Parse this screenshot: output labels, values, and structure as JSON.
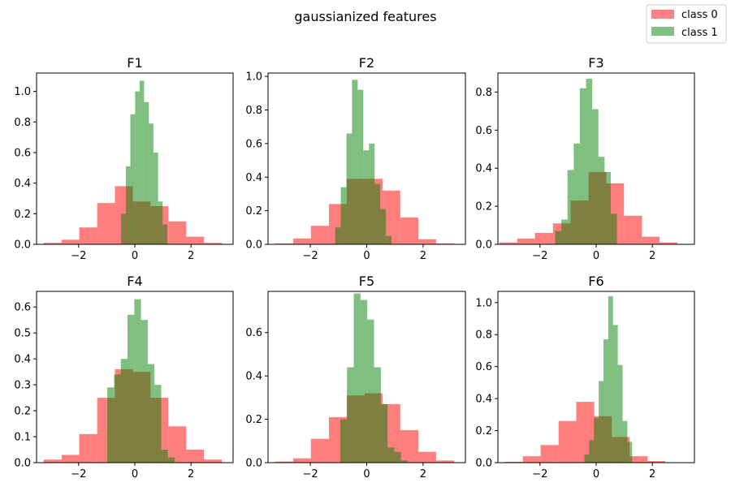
{
  "figure": {
    "suptitle": "gaussianized features"
  },
  "legend": {
    "placement": "upper-right",
    "items": [
      {
        "label": "class 0",
        "color": "#ff8080"
      },
      {
        "label": "class 1",
        "color": "#80c080"
      }
    ]
  },
  "colors": {
    "class0": "#ff0000",
    "class1": "#008000",
    "alpha": 0.5
  },
  "chart_data": [
    {
      "type": "histogram",
      "title": "F1",
      "xlim": [
        -3.5,
        3.5
      ],
      "ylim": [
        0,
        1.12
      ],
      "xticks": [
        -2,
        0,
        2
      ],
      "yticks": [
        0.0,
        0.2,
        0.4,
        0.6,
        0.8,
        1.0
      ],
      "xtick_labels": [
        "−2",
        "0",
        "2"
      ],
      "ytick_labels": [
        "0.0",
        "0.2",
        "0.4",
        "0.6",
        "0.8",
        "1.0"
      ],
      "series": [
        {
          "name": "class 0",
          "bins": [
            -3.25,
            -2.61,
            -1.98,
            -1.34,
            -0.71,
            -0.07,
            0.56,
            1.19,
            1.83,
            2.46,
            3.1
          ],
          "values": [
            0.01,
            0.03,
            0.11,
            0.27,
            0.38,
            0.28,
            0.25,
            0.15,
            0.05,
            0.01
          ]
        },
        {
          "name": "class 1",
          "bins": [
            -0.49,
            -0.32,
            -0.16,
            0.01,
            0.17,
            0.33,
            0.5,
            0.66,
            0.83,
            0.99,
            1.16
          ],
          "values": [
            0.2,
            0.51,
            0.85,
            1.0,
            1.07,
            0.93,
            0.79,
            0.6,
            0.28,
            0.13
          ]
        }
      ]
    },
    {
      "type": "histogram",
      "title": "F2",
      "xlim": [
        -3.5,
        3.5
      ],
      "ylim": [
        0,
        1.02
      ],
      "xticks": [
        -2,
        0,
        2
      ],
      "yticks": [
        0.0,
        0.2,
        0.4,
        0.6,
        0.8,
        1.0
      ],
      "xtick_labels": [
        "−2",
        "0",
        "2"
      ],
      "ytick_labels": [
        "0.0",
        "0.2",
        "0.4",
        "0.6",
        "0.8",
        "1.0"
      ],
      "series": [
        {
          "name": "class 0",
          "bins": [
            -3.25,
            -2.61,
            -1.98,
            -1.34,
            -0.71,
            -0.07,
            0.56,
            1.19,
            1.83,
            2.46,
            3.1
          ],
          "values": [
            0.005,
            0.035,
            0.11,
            0.24,
            0.39,
            0.39,
            0.32,
            0.16,
            0.03,
            0.005
          ]
        },
        {
          "name": "class 1",
          "bins": [
            -1.12,
            -0.92,
            -0.72,
            -0.52,
            -0.32,
            -0.12,
            0.08,
            0.28,
            0.48,
            0.68,
            0.88
          ],
          "values": [
            0.1,
            0.34,
            0.66,
            0.98,
            0.92,
            0.56,
            0.6,
            0.36,
            0.21,
            0.05
          ]
        }
      ]
    },
    {
      "type": "histogram",
      "title": "F3",
      "xlim": [
        -3.5,
        3.5
      ],
      "ylim": [
        0,
        0.9
      ],
      "xticks": [
        -2,
        0,
        2
      ],
      "yticks": [
        0.0,
        0.2,
        0.4,
        0.6,
        0.8
      ],
      "xtick_labels": [
        "−2",
        "0",
        "2"
      ],
      "ytick_labels": [
        "0.0",
        "0.2",
        "0.4",
        "0.6",
        "0.8"
      ],
      "series": [
        {
          "name": "class 0",
          "bins": [
            -3.45,
            -2.81,
            -2.18,
            -1.54,
            -0.91,
            -0.27,
            0.36,
            0.99,
            1.63,
            2.26,
            2.9
          ],
          "values": [
            0.01,
            0.03,
            0.06,
            0.11,
            0.23,
            0.38,
            0.32,
            0.15,
            0.04,
            0.01
          ]
        },
        {
          "name": "class 1",
          "bins": [
            -1.46,
            -1.24,
            -1.02,
            -0.8,
            -0.58,
            -0.36,
            -0.14,
            0.08,
            0.3,
            0.52,
            0.74
          ],
          "values": [
            0.07,
            0.13,
            0.39,
            0.53,
            0.82,
            0.87,
            0.71,
            0.46,
            0.38,
            0.16
          ]
        }
      ]
    },
    {
      "type": "histogram",
      "title": "F4",
      "xlim": [
        -3.5,
        3.5
      ],
      "ylim": [
        0,
        0.66
      ],
      "xticks": [
        -2,
        0,
        2
      ],
      "yticks": [
        0.0,
        0.1,
        0.2,
        0.3,
        0.4,
        0.5,
        0.6
      ],
      "xtick_labels": [
        "−2",
        "0",
        "2"
      ],
      "ytick_labels": [
        "0.0",
        "0.1",
        "0.2",
        "0.3",
        "0.4",
        "0.5",
        "0.6"
      ],
      "series": [
        {
          "name": "class 0",
          "bins": [
            -3.25,
            -2.61,
            -1.98,
            -1.34,
            -0.71,
            -0.07,
            0.56,
            1.19,
            1.83,
            2.46,
            3.1
          ],
          "values": [
            0.012,
            0.03,
            0.11,
            0.25,
            0.36,
            0.35,
            0.25,
            0.14,
            0.05,
            0.012
          ]
        },
        {
          "name": "class 1",
          "bins": [
            -0.98,
            -0.74,
            -0.5,
            -0.26,
            -0.02,
            0.22,
            0.46,
            0.7,
            0.94,
            1.18,
            1.42
          ],
          "values": [
            0.29,
            0.34,
            0.4,
            0.57,
            0.63,
            0.55,
            0.38,
            0.3,
            0.05,
            0.02
          ]
        }
      ]
    },
    {
      "type": "histogram",
      "title": "F5",
      "xlim": [
        -3.5,
        3.5
      ],
      "ylim": [
        0,
        0.79
      ],
      "xticks": [
        -2,
        0,
        2
      ],
      "yticks": [
        0.0,
        0.2,
        0.4,
        0.6
      ],
      "xtick_labels": [
        "−2",
        "0",
        "2"
      ],
      "ytick_labels": [
        "0.0",
        "0.2",
        "0.4",
        "0.6"
      ],
      "series": [
        {
          "name": "class 0",
          "bins": [
            -3.25,
            -2.61,
            -1.98,
            -1.34,
            -0.71,
            -0.07,
            0.56,
            1.19,
            1.83,
            2.46,
            3.1
          ],
          "values": [
            0.005,
            0.02,
            0.11,
            0.21,
            0.31,
            0.32,
            0.27,
            0.15,
            0.05,
            0.01
          ]
        },
        {
          "name": "class 1",
          "bins": [
            -0.94,
            -0.7,
            -0.46,
            -0.22,
            0.02,
            0.26,
            0.5,
            0.74,
            0.98,
            1.22,
            1.46
          ],
          "values": [
            0.2,
            0.44,
            0.78,
            0.75,
            0.66,
            0.44,
            0.27,
            0.07,
            0.05,
            0.01
          ]
        }
      ]
    },
    {
      "type": "histogram",
      "title": "F6",
      "xlim": [
        -3.5,
        3.5
      ],
      "ylim": [
        0,
        1.07
      ],
      "xticks": [
        -2,
        0,
        2
      ],
      "yticks": [
        0.0,
        0.2,
        0.4,
        0.6,
        0.8,
        1.0
      ],
      "xtick_labels": [
        "−2",
        "0",
        "2"
      ],
      "ytick_labels": [
        "0.0",
        "0.2",
        "0.4",
        "0.6",
        "0.8",
        "1.0"
      ],
      "series": [
        {
          "name": "class 0",
          "bins": [
            -3.25,
            -2.61,
            -1.98,
            -1.34,
            -0.71,
            -0.07,
            0.56,
            1.19,
            1.83,
            2.46,
            3.1
          ],
          "values": [
            0.005,
            0.04,
            0.11,
            0.26,
            0.38,
            0.29,
            0.16,
            0.04,
            0.01,
            0.002
          ]
        },
        {
          "name": "class 1",
          "bins": [
            -0.42,
            -0.25,
            -0.08,
            0.09,
            0.26,
            0.43,
            0.6,
            0.77,
            0.94,
            1.11,
            1.28
          ],
          "values": [
            0.05,
            0.14,
            0.28,
            0.51,
            0.77,
            1.04,
            0.86,
            0.61,
            0.26,
            0.13
          ]
        }
      ]
    }
  ]
}
